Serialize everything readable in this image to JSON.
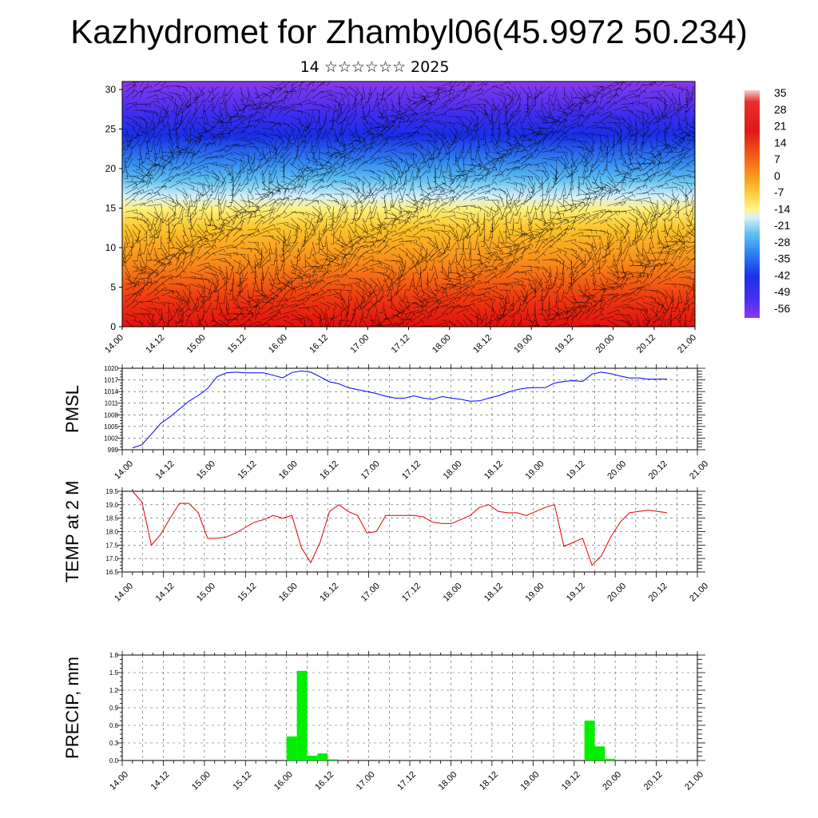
{
  "title": "Kazhydromet for Zhambyl06(45.9972 50.234)",
  "subtitle": "14 ☆☆☆☆☆☆ 2025",
  "colors": {
    "pmsl_line": "#0000ff",
    "temp_line": "#e00000",
    "precip_bar": "#00ee00",
    "colorbar_top": "#f0c8c8",
    "colorbar_bottom": "#7a2cf0"
  },
  "chart_data": [
    {
      "id": "cross_section",
      "type": "heatmap",
      "title": "",
      "xlabel": "",
      "ylabel": "",
      "ylim": [
        0,
        30
      ],
      "y_ticks": [
        "0",
        "5",
        "10",
        "15",
        "20",
        "25",
        "30"
      ],
      "x_ticks": [
        "14.00",
        "14.12",
        "15.00",
        "15.12",
        "16.00",
        "16.12",
        "17.00",
        "17.12",
        "18.00",
        "18.12",
        "19.00",
        "19.12",
        "20.00",
        "20.12",
        "21.00"
      ],
      "colorbar_labels": [
        "35",
        "28",
        "21",
        "14",
        "7",
        "0",
        "-7",
        "-14",
        "-21",
        "-28",
        "-35",
        "-42",
        "-49",
        "-56"
      ],
      "colorbar_range": [
        -60,
        38
      ],
      "overlay": "wind barbs"
    },
    {
      "id": "pmsl",
      "type": "line",
      "ylabel": "PMSL",
      "ylim": [
        999,
        1020
      ],
      "y_ticks": [
        "999",
        "1002",
        "1005",
        "1008",
        "1011",
        "1014",
        "1017",
        "1020"
      ],
      "x_ticks": [
        "14.00",
        "14.12",
        "15.00",
        "15.12",
        "16.00",
        "16.12",
        "17.00",
        "17.12",
        "18.00",
        "18.12",
        "19.00",
        "19.12",
        "20.00",
        "20.12",
        "21.00"
      ],
      "grid": true,
      "values": [
        999.5,
        1000.3,
        1003.0,
        1005.8,
        1007.5,
        1009.5,
        1011.5,
        1013.0,
        1014.8,
        1017.8,
        1018.8,
        1019.0,
        1018.8,
        1018.8,
        1018.8,
        1018.2,
        1017.5,
        1018.9,
        1019.3,
        1019.0,
        1017.8,
        1016.5,
        1016.0,
        1015.0,
        1014.5,
        1014.0,
        1013.5,
        1012.8,
        1012.3,
        1012.3,
        1012.9,
        1012.3,
        1012.0,
        1012.7,
        1012.3,
        1012.0,
        1011.5,
        1011.6,
        1012.3,
        1012.9,
        1013.8,
        1014.5,
        1014.9,
        1015.0,
        1015.0,
        1016.2,
        1016.6,
        1016.8,
        1016.6,
        1018.5,
        1019.0,
        1018.6,
        1018.0,
        1017.5,
        1017.5,
        1017.2,
        1017.2,
        1017.2
      ]
    },
    {
      "id": "temp",
      "type": "line",
      "ylabel": "TEMP at 2 M",
      "ylim": [
        16.5,
        19.5
      ],
      "y_ticks": [
        "16.5",
        "17.0",
        "17.5",
        "18.0",
        "18.5",
        "19.0",
        "19.5"
      ],
      "x_ticks": [
        "14.00",
        "14.12",
        "15.00",
        "15.12",
        "16.00",
        "16.12",
        "17.00",
        "17.12",
        "18.00",
        "18.12",
        "19.00",
        "19.12",
        "20.00",
        "20.12",
        "21.00"
      ],
      "grid": true,
      "values": [
        19.5,
        19.1,
        17.5,
        17.9,
        18.5,
        19.05,
        19.05,
        18.7,
        17.75,
        17.75,
        17.8,
        17.95,
        18.15,
        18.35,
        18.45,
        18.6,
        18.5,
        18.6,
        17.4,
        16.85,
        17.6,
        18.75,
        19.0,
        18.75,
        18.6,
        17.95,
        18.0,
        18.6,
        18.6,
        18.6,
        18.6,
        18.55,
        18.35,
        18.3,
        18.3,
        18.45,
        18.6,
        18.9,
        19.0,
        18.75,
        18.7,
        18.7,
        18.6,
        18.75,
        18.9,
        19.0,
        17.45,
        17.6,
        17.75,
        16.75,
        17.1,
        17.8,
        18.35,
        18.7,
        18.75,
        18.8,
        18.75,
        18.7
      ]
    },
    {
      "id": "precip",
      "type": "bar",
      "ylabel": "PRECIP, mm",
      "ylim": [
        0,
        1.8
      ],
      "y_ticks": [
        "0.0",
        "0.3",
        "0.6",
        "0.9",
        "1.2",
        "1.5",
        "1.8"
      ],
      "x_ticks": [
        "14.00",
        "14.12",
        "15.00",
        "15.12",
        "16.00",
        "16.12",
        "17.00",
        "17.12",
        "18.00",
        "18.12",
        "19.00",
        "19.12",
        "20.00",
        "20.12",
        "21.00"
      ],
      "grid": true,
      "bars": [
        {
          "t": 16.5,
          "value": 0.41
        },
        {
          "t": 17.5,
          "value": 1.53
        },
        {
          "t": 18.5,
          "value": 0.08
        },
        {
          "t": 19.5,
          "value": 0.12
        },
        {
          "t": 20.5,
          "value": 0.02
        },
        {
          "t": 45.5,
          "value": 0.68
        },
        {
          "t": 46.5,
          "value": 0.24
        },
        {
          "t": 47.5,
          "value": 0.03
        }
      ]
    }
  ]
}
